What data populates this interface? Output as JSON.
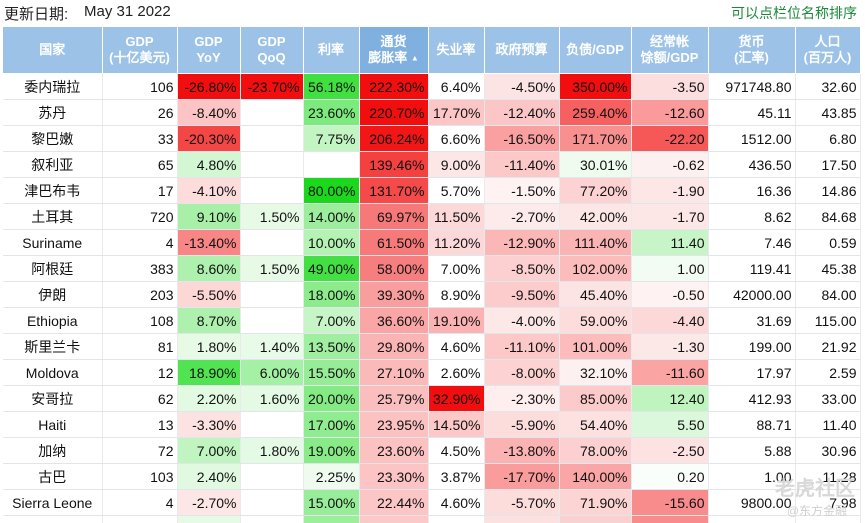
{
  "header": {
    "update_label": "更新日期:",
    "update_date": "May 31 2022",
    "sort_hint": "可以点栏位名称排序"
  },
  "columns": [
    {
      "key": "country",
      "line1": "国家",
      "line2": ""
    },
    {
      "key": "gdp",
      "line1": "GDP",
      "line2": "(十亿美元)"
    },
    {
      "key": "gdp_yoy",
      "line1": "GDP",
      "line2": "YoY"
    },
    {
      "key": "gdp_qoq",
      "line1": "GDP",
      "line2": "QoQ"
    },
    {
      "key": "rate",
      "line1": "利率",
      "line2": ""
    },
    {
      "key": "inflation",
      "line1": "通货",
      "line2": "膨胀率"
    },
    {
      "key": "unemployment",
      "line1": "失业率",
      "line2": ""
    },
    {
      "key": "budget",
      "line1": "政府预算",
      "line2": ""
    },
    {
      "key": "debt",
      "line1": "负债/GDP",
      "line2": ""
    },
    {
      "key": "current_account",
      "line1": "经常帐",
      "line2": "馀额/GDP"
    },
    {
      "key": "fx",
      "line1": "货币",
      "line2": "(汇率)"
    },
    {
      "key": "population",
      "line1": "人口",
      "line2": "(百万人)"
    }
  ],
  "sort_indicator": "▲",
  "rows": [
    {
      "country": "委内瑞拉",
      "gdp": "106",
      "gdp_yoy": "-26.80%",
      "gdp_qoq": "-23.70%",
      "rate": "56.18%",
      "inflation": "222.30%",
      "unemployment": "6.40%",
      "budget": "-4.50%",
      "debt": "350.00%",
      "current_account": "-3.50",
      "fx": "971748.80",
      "population": "32.60",
      "colors": {
        "gdp_yoy": "#f20e0e",
        "gdp_qoq": "#f20e0e",
        "rate": "#3fe03f",
        "inflation": "#f20e0e",
        "budget": "#fde4e4",
        "debt": "#f20e0e",
        "current_account": "#fcdede"
      }
    },
    {
      "country": "苏丹",
      "gdp": "26",
      "gdp_yoy": "-8.40%",
      "gdp_qoq": "",
      "rate": "23.60%",
      "inflation": "220.70%",
      "unemployment": "17.70%",
      "budget": "-12.40%",
      "debt": "259.40%",
      "current_account": "-12.60",
      "fx": "45.11",
      "population": "43.85",
      "colors": {
        "gdp_yoy": "#fcc4c4",
        "rate": "#7cea7c",
        "inflation": "#f20e0e",
        "unemployment": "#fcc6c6",
        "budget": "#fcc6c6",
        "debt": "#f66060",
        "current_account": "#fa9a9a"
      }
    },
    {
      "country": "黎巴嫩",
      "gdp": "33",
      "gdp_yoy": "-20.30%",
      "gdp_qoq": "",
      "rate": "7.75%",
      "inflation": "206.24%",
      "unemployment": "6.60%",
      "budget": "-16.50%",
      "debt": "171.70%",
      "current_account": "-22.20",
      "fx": "1512.00",
      "population": "6.80",
      "colors": {
        "gdp_yoy": "#f54646",
        "rate": "#c3f5c3",
        "inflation": "#f31616",
        "budget": "#faa0a0",
        "debt": "#f99090",
        "current_account": "#f65858"
      }
    },
    {
      "country": "叙利亚",
      "gdp": "65",
      "gdp_yoy": "4.80%",
      "gdp_qoq": "",
      "rate": "",
      "inflation": "139.46%",
      "unemployment": "9.00%",
      "budget": "-11.40%",
      "debt": "30.01%",
      "current_account": "-0.62",
      "fx": "436.50",
      "population": "17.50",
      "colors": {
        "gdp_yoy": "#d3f6d3",
        "inflation": "#f54040",
        "unemployment": "#fde6e6",
        "budget": "#fcc8c8",
        "debt": "#eefbee",
        "current_account": "#fdf0f0"
      }
    },
    {
      "country": "津巴布韦",
      "gdp": "17",
      "gdp_yoy": "-4.10%",
      "gdp_qoq": "",
      "rate": "80.00%",
      "inflation": "131.70%",
      "unemployment": "5.70%",
      "budget": "-1.50%",
      "debt": "77.20%",
      "current_account": "-1.90",
      "fx": "16.36",
      "population": "14.86",
      "colors": {
        "gdp_yoy": "#fddcdc",
        "rate": "#1cd81c",
        "inflation": "#f54a4a",
        "budget": "#fef2f2",
        "debt": "#fcd2d2",
        "current_account": "#fde6e6"
      }
    },
    {
      "country": "土耳其",
      "gdp": "720",
      "gdp_yoy": "9.10%",
      "gdp_qoq": "1.50%",
      "rate": "14.00%",
      "inflation": "69.97%",
      "unemployment": "11.50%",
      "budget": "-2.70%",
      "debt": "42.00%",
      "current_account": "-1.70",
      "fx": "8.62",
      "population": "84.68",
      "colors": {
        "gdp_yoy": "#a8f0a8",
        "gdp_qoq": "#e6fae6",
        "rate": "#9cee9c",
        "inflation": "#f77878",
        "unemployment": "#fcd8d8",
        "budget": "#fdeaea",
        "debt": "#fde6e6",
        "current_account": "#fde6e6"
      }
    },
    {
      "country": "Suriname",
      "gdp": "4",
      "gdp_yoy": "-13.40%",
      "gdp_qoq": "",
      "rate": "10.00%",
      "inflation": "61.50%",
      "unemployment": "11.20%",
      "budget": "-12.90%",
      "debt": "111.40%",
      "current_account": "11.40",
      "fx": "7.46",
      "population": "0.59",
      "colors": {
        "gdp_yoy": "#f88686",
        "rate": "#b4f3b4",
        "inflation": "#f77a7a",
        "unemployment": "#fcd8d8",
        "budget": "#fbb6b6",
        "debt": "#fbb4b4",
        "current_account": "#c8f5c8"
      }
    },
    {
      "country": "阿根廷",
      "gdp": "383",
      "gdp_yoy": "8.60%",
      "gdp_qoq": "1.50%",
      "rate": "49.00%",
      "inflation": "58.00%",
      "unemployment": "7.00%",
      "budget": "-8.50%",
      "debt": "102.00%",
      "current_account": "1.00",
      "fx": "119.41",
      "population": "45.38",
      "colors": {
        "gdp_yoy": "#aef1ae",
        "gdp_qoq": "#e6fae6",
        "rate": "#42e042",
        "inflation": "#f77e7e",
        "budget": "#fcd0d0",
        "debt": "#fcbcbc",
        "current_account": "#f2fcf2"
      }
    },
    {
      "country": "伊朗",
      "gdp": "203",
      "gdp_yoy": "-5.50%",
      "gdp_qoq": "",
      "rate": "18.00%",
      "inflation": "39.30%",
      "unemployment": "8.90%",
      "budget": "-9.50%",
      "debt": "45.40%",
      "current_account": "-0.50",
      "fx": "42000.00",
      "population": "84.00",
      "colors": {
        "gdp_yoy": "#fdd6d6",
        "rate": "#8cec8c",
        "inflation": "#f99e9e",
        "budget": "#fccccc",
        "debt": "#fde4e4",
        "current_account": "#fef2f2"
      }
    },
    {
      "country": "Ethiopia",
      "gdp": "108",
      "gdp_yoy": "8.70%",
      "gdp_qoq": "",
      "rate": "7.00%",
      "inflation": "36.60%",
      "unemployment": "19.10%",
      "budget": "-4.00%",
      "debt": "59.00%",
      "current_account": "-4.40",
      "fx": "31.69",
      "population": "115.00",
      "colors": {
        "gdp_yoy": "#aef1ae",
        "rate": "#c8f5c8",
        "inflation": "#faa6a6",
        "unemployment": "#fbb2b2",
        "budget": "#fde8e8",
        "debt": "#fddcdc",
        "current_account": "#fcd8d8"
      }
    },
    {
      "country": "斯里兰卡",
      "gdp": "81",
      "gdp_yoy": "1.80%",
      "gdp_qoq": "1.40%",
      "rate": "13.50%",
      "inflation": "29.80%",
      "unemployment": "4.60%",
      "budget": "-11.10%",
      "debt": "101.00%",
      "current_account": "-1.30",
      "fx": "199.00",
      "population": "21.92",
      "colors": {
        "gdp_yoy": "#e6fae6",
        "gdp_qoq": "#e8fae8",
        "rate": "#a0ef a0",
        "inflation": "#fbb4b4",
        "budget": "#fcc8c8",
        "debt": "#fcbcbc",
        "current_account": "#fde8e8"
      }
    },
    {
      "country": "Moldova",
      "gdp": "12",
      "gdp_yoy": "18.90%",
      "gdp_qoq": "6.00%",
      "rate": "15.50%",
      "inflation": "27.10%",
      "unemployment": "2.60%",
      "budget": "-8.00%",
      "debt": "32.10%",
      "current_account": "-11.60",
      "fx": "17.97",
      "population": "2.59",
      "colors": {
        "gdp_yoy": "#52e352",
        "gdp_qoq": "#a4f0a4",
        "rate": "#96ed96",
        "inflation": "#fbbaba",
        "budget": "#fcd2d2",
        "debt": "#fdf0f0",
        "current_account": "#faa4a4"
      }
    },
    {
      "country": "安哥拉",
      "gdp": "62",
      "gdp_yoy": "2.20%",
      "gdp_qoq": "1.60%",
      "rate": "20.00%",
      "inflation": "25.79%",
      "unemployment": "32.90%",
      "budget": "-2.30%",
      "debt": "85.00%",
      "current_account": "12.40",
      "fx": "412.93",
      "population": "33.00",
      "colors": {
        "gdp_yoy": "#e2f9e2",
        "gdp_qoq": "#e4fae4",
        "rate": "#84eb84",
        "inflation": "#fbbebe",
        "unemployment": "#f20e0e",
        "budget": "#feeeee",
        "debt": "#fccaca",
        "current_account": "#bff4bf"
      }
    },
    {
      "country": "Haiti",
      "gdp": "13",
      "gdp_yoy": "-3.30%",
      "gdp_qoq": "",
      "rate": "17.00%",
      "inflation": "23.95%",
      "unemployment": "14.50%",
      "budget": "-5.90%",
      "debt": "54.40%",
      "current_account": "5.50",
      "fx": "88.71",
      "population": "11.40",
      "colors": {
        "gdp_yoy": "#fde2e2",
        "rate": "#90ec90",
        "inflation": "#fcc2c2",
        "unemployment": "#fcc8c8",
        "budget": "#fddcdc",
        "debt": "#fde0e0",
        "current_account": "#dcf8dc"
      }
    },
    {
      "country": "加纳",
      "gdp": "72",
      "gdp_yoy": "7.00%",
      "gdp_qoq": "1.80%",
      "rate": "19.00%",
      "inflation": "23.60%",
      "unemployment": "4.50%",
      "budget": "-13.80%",
      "debt": "78.00%",
      "current_account": "-2.50",
      "fx": "5.88",
      "population": "30.96",
      "colors": {
        "gdp_yoy": "#c0f4c0",
        "gdp_qoq": "#e4fae4",
        "rate": "#88eb88",
        "inflation": "#fcc2c2",
        "budget": "#fbb2b2",
        "debt": "#fcd0d0",
        "current_account": "#fde2e2"
      }
    },
    {
      "country": "古巴",
      "gdp": "103",
      "gdp_yoy": "2.40%",
      "gdp_qoq": "",
      "rate": "2.25%",
      "inflation": "23.30%",
      "unemployment": "3.87%",
      "budget": "-17.70%",
      "debt": "140.00%",
      "current_account": "0.20",
      "fx": "1.00",
      "population": "11.28",
      "colors": {
        "gdp_yoy": "#e0f9e0",
        "rate": "#eefbee",
        "inflation": "#fcc4c4",
        "budget": "#fa9c9c",
        "debt": "#fba6a6",
        "current_account": "#fafefa"
      }
    },
    {
      "country": "Sierra Leone",
      "gdp": "4",
      "gdp_yoy": "-2.70%",
      "gdp_qoq": "",
      "rate": "15.00%",
      "inflation": "22.44%",
      "unemployment": "4.60%",
      "budget": "-5.70%",
      "debt": "71.90%",
      "current_account": "-15.60",
      "fx": "9800.00",
      "population": "7.98",
      "colors": {
        "gdp_yoy": "#fde6e6",
        "rate": "#98ed98",
        "inflation": "#fcc6c6",
        "budget": "#fddcdc",
        "debt": "#fcd4d4",
        "current_account": "#f88c8c"
      }
    },
    {
      "country": "",
      "gdp": "",
      "gdp_yoy": "",
      "gdp_qoq": "",
      "rate": "",
      "inflation": "",
      "unemployment": "",
      "budget": "",
      "debt": "",
      "current_account": "",
      "fx": "",
      "population": "",
      "colors": {
        "gdp_yoy": "#e6fae6",
        "rate": "#9cee9c",
        "inflation": "#fcc8c8",
        "budget": "#fde0e0",
        "debt": "#fcd0d0",
        "current_account": "#f88c8c"
      }
    }
  ],
  "watermark": {
    "main": "老虎社区",
    "sub": "@东方金融"
  }
}
